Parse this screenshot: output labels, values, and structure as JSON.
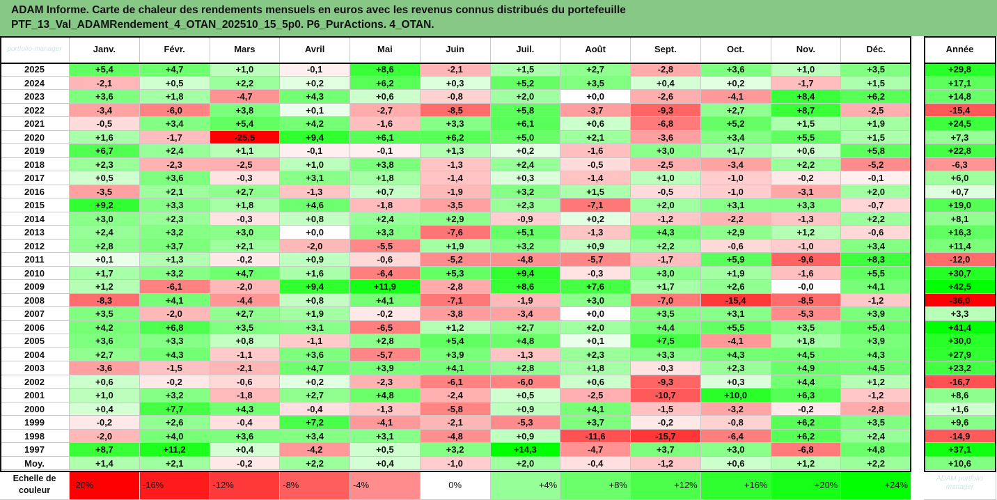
{
  "title": {
    "line1": "ADAM Informe. Carte de chaleur des rendements mensuels en euros avec les revenus connus distribués du portefeuille",
    "line2": "PTF_13_Val_ADAMRendement_4_OTAN_202510_15_5p0. P6_PurActions. 4_OTAN."
  },
  "watermark": {
    "top_left": "portfolio-manager",
    "bottom_right": "ADAM portfolio manager"
  },
  "colors": {
    "title_background": "#88c887",
    "negative_max": "#ff0000",
    "neutral": "#ffffff",
    "positive_max": "#00ff00",
    "grid_lines": "#c9c9c9",
    "frame": "#111111"
  },
  "chart_data": {
    "type": "heatmap",
    "title": "ADAM Informe. Carte de chaleur des rendements mensuels en euros avec les revenus connus distribués du portefeuille",
    "columns": [
      "Janv.",
      "Févr.",
      "Mars",
      "Avril",
      "Mai",
      "Juin",
      "Juil.",
      "Août",
      "Sept.",
      "Oct.",
      "Nov.",
      "Déc."
    ],
    "year_column": "Année",
    "rows": [
      {
        "year": "2025",
        "values": [
          "+5,4",
          "+4,7",
          "+1,0",
          "-0,1",
          "+8,6",
          "-2,1",
          "+1,5",
          "+2,7",
          "-2,8",
          "+3,6",
          "+1,0",
          "+3,5"
        ],
        "annual": "+29,8"
      },
      {
        "year": "2024",
        "values": [
          "-2,1",
          "+0,5",
          "+2,2",
          "+0,2",
          "+6,2",
          "+0,3",
          "+5,2",
          "+3,5",
          "+0,4",
          "+0,2",
          "-1,7",
          "+1,5"
        ],
        "annual": "+17,1"
      },
      {
        "year": "2023",
        "values": [
          "+3,6",
          "+1,8",
          "-4,7",
          "+4,3",
          "+0,6",
          "-0,8",
          "+2,0",
          "+0,0",
          "-2,6",
          "-4,1",
          "+8,4",
          "+6,2"
        ],
        "annual": "+14,8"
      },
      {
        "year": "2022",
        "values": [
          "-3,4",
          "-6,0",
          "+3,8",
          "+0,1",
          "-2,7",
          "-8,5",
          "+5,8",
          "-3,7",
          "-9,3",
          "+2,7",
          "+8,7",
          "-2,5"
        ],
        "annual": "-15,4"
      },
      {
        "year": "2021",
        "values": [
          "-0,5",
          "+3,4",
          "+5,4",
          "+4,2",
          "-1,6",
          "+3,3",
          "+6,1",
          "+0,6",
          "-6,8",
          "+5,2",
          "+1,5",
          "+1,9"
        ],
        "annual": "+24,5"
      },
      {
        "year": "2020",
        "values": [
          "+1,6",
          "-1,7",
          "-25,5",
          "+9,4",
          "+6,1",
          "+6,2",
          "+5,0",
          "+2,1",
          "-3,6",
          "+3,4",
          "+5,5",
          "+1,5"
        ],
        "annual": "+7,3"
      },
      {
        "year": "2019",
        "values": [
          "+6,7",
          "+2,4",
          "+1,1",
          "-0,1",
          "-0,1",
          "+1,3",
          "+0,2",
          "-1,6",
          "+3,0",
          "+1,7",
          "+0,6",
          "+5,8"
        ],
        "annual": "+22,8"
      },
      {
        "year": "2018",
        "values": [
          "+2,3",
          "-2,3",
          "-2,5",
          "+1,0",
          "+3,8",
          "-1,3",
          "+2,4",
          "-0,5",
          "-2,5",
          "-3,4",
          "+2,2",
          "-5,2"
        ],
        "annual": "-6,3"
      },
      {
        "year": "2017",
        "values": [
          "+0,5",
          "+3,6",
          "-0,3",
          "+3,1",
          "+1,8",
          "-1,4",
          "+0,3",
          "-1,4",
          "+1,0",
          "-1,0",
          "-0,2",
          "-0,1"
        ],
        "annual": "+6,0"
      },
      {
        "year": "2016",
        "values": [
          "-3,5",
          "+2,1",
          "+2,7",
          "-1,3",
          "+0,7",
          "-1,9",
          "+3,2",
          "+1,5",
          "-0,5",
          "-1,0",
          "-3,1",
          "+2,0"
        ],
        "annual": "+0,7"
      },
      {
        "year": "2015",
        "values": [
          "+9,2",
          "+3,3",
          "+1,8",
          "+4,6",
          "-1,8",
          "-3,5",
          "+2,3",
          "-7,1",
          "+2,0",
          "+3,1",
          "+3,3",
          "-0,7"
        ],
        "annual": "+19,0"
      },
      {
        "year": "2014",
        "values": [
          "+3,0",
          "+2,3",
          "-0,3",
          "+0,8",
          "+2,4",
          "+2,9",
          "-0,9",
          "+0,2",
          "-1,2",
          "-2,2",
          "-1,3",
          "+2,2"
        ],
        "annual": "+8,1"
      },
      {
        "year": "2013",
        "values": [
          "+2,4",
          "+3,2",
          "+3,0",
          "+0,0",
          "+3,3",
          "-7,6",
          "+5,1",
          "-1,3",
          "+4,3",
          "+2,9",
          "+1,2",
          "-0,6"
        ],
        "annual": "+16,3"
      },
      {
        "year": "2012",
        "values": [
          "+2,8",
          "+3,7",
          "+2,1",
          "-2,0",
          "-5,5",
          "+1,9",
          "+3,2",
          "+0,9",
          "+2,2",
          "-0,6",
          "-1,0",
          "+3,4"
        ],
        "annual": "+11,4"
      },
      {
        "year": "2011",
        "values": [
          "+0,1",
          "+1,3",
          "-0,2",
          "+0,9",
          "-0,6",
          "-5,2",
          "-4,8",
          "-5,7",
          "-1,7",
          "+5,9",
          "-9,6",
          "+8,3"
        ],
        "annual": "-12,0"
      },
      {
        "year": "2010",
        "values": [
          "+1,7",
          "+3,2",
          "+4,7",
          "+1,6",
          "-6,4",
          "+5,3",
          "+9,4",
          "-0,3",
          "+3,0",
          "+1,9",
          "-1,6",
          "+5,5"
        ],
        "annual": "+30,7"
      },
      {
        "year": "2009",
        "values": [
          "+1,2",
          "-6,1",
          "-2,0",
          "+9,4",
          "+11,9",
          "-2,8",
          "+8,6",
          "+7,6",
          "+1,7",
          "+2,6",
          "-0,0",
          "+4,1"
        ],
        "annual": "+42,5"
      },
      {
        "year": "2008",
        "values": [
          "-8,3",
          "+4,1",
          "-4,4",
          "+0,8",
          "+4,1",
          "-7,1",
          "-1,9",
          "+3,0",
          "-7,0",
          "-15,4",
          "-8,5",
          "-1,2"
        ],
        "annual": "-36,0"
      },
      {
        "year": "2007",
        "values": [
          "+3,5",
          "-2,0",
          "+2,7",
          "+1,9",
          "-0,2",
          "-3,8",
          "-3,4",
          "+0,0",
          "+3,5",
          "+3,1",
          "-5,3",
          "+3,9"
        ],
        "annual": "+3,3"
      },
      {
        "year": "2006",
        "values": [
          "+4,2",
          "+6,8",
          "+3,5",
          "+3,1",
          "-6,5",
          "+1,2",
          "+2,7",
          "+2,0",
          "+4,4",
          "+5,5",
          "+3,5",
          "+5,4"
        ],
        "annual": "+41,4"
      },
      {
        "year": "2005",
        "values": [
          "+3,6",
          "+3,3",
          "+0,8",
          "-1,1",
          "+2,8",
          "+5,4",
          "+4,8",
          "+0,1",
          "+7,5",
          "-4,1",
          "+1,8",
          "+3,9"
        ],
        "annual": "+30,0"
      },
      {
        "year": "2004",
        "values": [
          "+2,7",
          "+4,3",
          "-1,1",
          "+3,6",
          "-5,7",
          "+3,9",
          "-1,3",
          "+2,3",
          "+3,3",
          "+4,3",
          "+4,5",
          "+4,3"
        ],
        "annual": "+27,9"
      },
      {
        "year": "2003",
        "values": [
          "-3,6",
          "-1,5",
          "-2,1",
          "+4,7",
          "+3,9",
          "+4,1",
          "+2,8",
          "+1,8",
          "-0,3",
          "+2,3",
          "+4,9",
          "+4,5"
        ],
        "annual": "+23,2"
      },
      {
        "year": "2002",
        "values": [
          "+0,6",
          "-0,2",
          "-0,6",
          "+0,2",
          "-2,3",
          "-6,1",
          "-6,0",
          "+0,6",
          "-9,3",
          "+0,3",
          "+4,4",
          "+1,2"
        ],
        "annual": "-16,7"
      },
      {
        "year": "2001",
        "values": [
          "+1,0",
          "+3,2",
          "-1,8",
          "+2,7",
          "+4,8",
          "-2,4",
          "+0,5",
          "-2,5",
          "-10,7",
          "+10,0",
          "+6,3",
          "-1,2"
        ],
        "annual": "+8,6"
      },
      {
        "year": "2000",
        "values": [
          "+0,4",
          "+7,7",
          "+4,3",
          "-0,4",
          "-1,3",
          "-5,8",
          "+0,9",
          "+4,1",
          "-1,5",
          "-3,2",
          "-0,2",
          "-2,8"
        ],
        "annual": "+1,6"
      },
      {
        "year": "1999",
        "values": [
          "-0,2",
          "+2,6",
          "-0,4",
          "+7,2",
          "-4,1",
          "-2,1",
          "-5,3",
          "+3,7",
          "-0,2",
          "-0,8",
          "+6,2",
          "+3,5"
        ],
        "annual": "+9,6"
      },
      {
        "year": "1998",
        "values": [
          "-2,0",
          "+4,0",
          "+3,6",
          "+3,4",
          "+3,1",
          "-4,8",
          "+0,9",
          "-11,6",
          "-15,7",
          "-6,4",
          "+6,2",
          "+2,4"
        ],
        "annual": "-14,9"
      },
      {
        "year": "1997",
        "values": [
          "+8,7",
          "+11,2",
          "+0,4",
          "-4,2",
          "+0,5",
          "+3,2",
          "+14,3",
          "-4,7",
          "+3,7",
          "+3,0",
          "-6,8",
          "+4,8"
        ],
        "annual": "+37,1"
      }
    ],
    "average_row": {
      "label": "Moy.",
      "values": [
        "+1,4",
        "+2,1",
        "-0,2",
        "+2,2",
        "+0,4",
        "-1,0",
        "+2,0",
        "-0,4",
        "-1,2",
        "+0,6",
        "+1,2",
        "+2,2"
      ],
      "annual": "+10,6"
    },
    "color_scale": {
      "label_line1": "Echelle de",
      "label_line2": "couleur",
      "stops": [
        "-20%",
        "-16%",
        "-12%",
        "-8%",
        "-4%",
        "0%",
        "+4%",
        "+8%",
        "+12%",
        "+16%",
        "+20%",
        "+24%"
      ]
    },
    "color_domain_monthly": [
      -25.5,
      14.3
    ],
    "color_domain_annual": [
      -36.0,
      42.5
    ]
  }
}
